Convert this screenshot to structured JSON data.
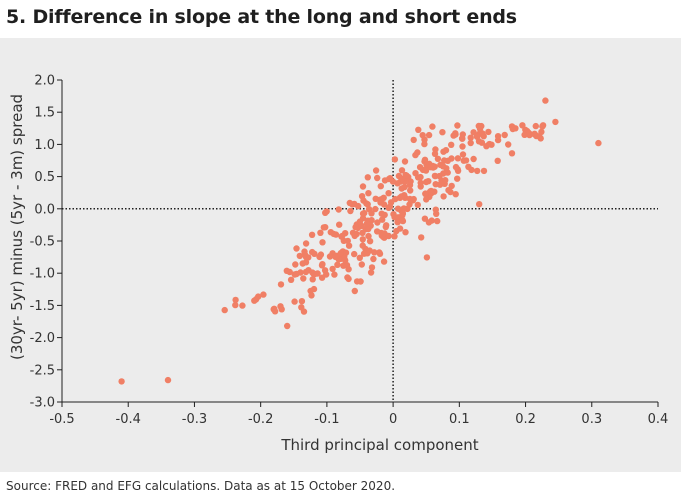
{
  "title": "5. Difference in slope at the long and short ends",
  "source": "Source: FRED and EFG calculations. Data as at 15 October 2020.",
  "colors": {
    "point": "#f07f65",
    "background": "#ececec",
    "axis": "#1f1f1f"
  },
  "chart_data": {
    "type": "scatter",
    "title": "5. Difference in slope at the long and short ends",
    "xlabel": "Third principal component",
    "ylabel": "(30yr- 5yr) minus (5yr - 3m) spread",
    "xlim": [
      -0.5,
      0.4
    ],
    "ylim": [
      -3.0,
      2.0
    ],
    "x_ticks": [
      -0.5,
      -0.4,
      -0.3,
      -0.2,
      -0.1,
      0.0,
      0.1,
      0.2,
      0.3,
      0.4
    ],
    "x_tick_labels": [
      "-0.5",
      "-0.4",
      "-0.3",
      "-0.2",
      "-0.1",
      "0",
      "0.1",
      "0.2",
      "0.3",
      "0.4"
    ],
    "y_ticks": [
      2.0,
      1.5,
      1.0,
      0.5,
      0.0,
      -0.5,
      -1.0,
      -1.5,
      -2.0,
      -2.5,
      -3.0
    ],
    "y_tick_labels": [
      "2.0",
      "1.5",
      "1.0",
      "0.5",
      "0.0",
      "-0.5",
      "-1.0",
      "-1.5",
      "-2.0",
      "-2.5",
      "-3.0"
    ],
    "reference_lines": {
      "x": 0.0,
      "y": 0.0,
      "style": "dotted"
    },
    "outliers": [
      {
        "x": -0.41,
        "y": -2.68
      },
      {
        "x": -0.34,
        "y": -2.66
      },
      {
        "x": -0.16,
        "y": -1.82
      },
      {
        "x": 0.31,
        "y": 1.02
      },
      {
        "x": 0.23,
        "y": 1.68
      },
      {
        "x": 0.245,
        "y": 1.35
      }
    ],
    "cloud": {
      "n": 360,
      "relationship": "approx. linear",
      "slope": 7.6,
      "intercept": 0.0,
      "noise_sd": 0.33,
      "x_mean": 0.0,
      "x_sd": 0.095,
      "x_range": [
        -0.255,
        0.23
      ]
    }
  }
}
